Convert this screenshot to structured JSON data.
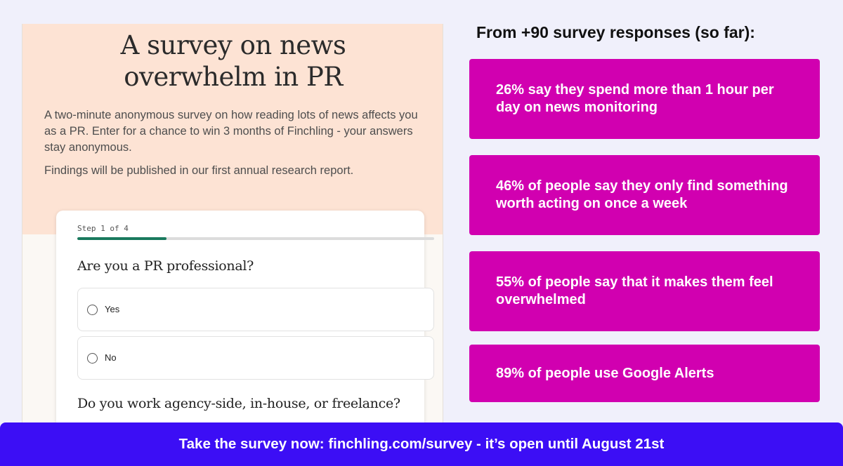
{
  "survey": {
    "title_line1": "A survey on news",
    "title_line2": "overwhelm in PR",
    "description": "A two-minute anonymous survey on how reading lots of news affects you as a PR. Enter for a chance to win 3 months of Finchling - your answers stay anonymous.",
    "findings_note": "Findings will be published in our first annual research report.",
    "form": {
      "step_label": "Step 1 of 4",
      "progress_fraction": 0.25,
      "question1": "Are you a PR professional?",
      "options": [
        {
          "label": "Yes"
        },
        {
          "label": "No"
        }
      ],
      "question2": "Do you work agency-side, in-house, or freelance?"
    }
  },
  "stats": {
    "heading": "From +90 survey responses (so far):",
    "items": [
      {
        "text": "26% say they spend more than 1 hour per day on news monitoring"
      },
      {
        "text": "46% of people say they only find something worth acting on once a week"
      },
      {
        "text": "55% of people say that it makes them feel overwhelmed"
      },
      {
        "text": "89% of people use Google Alerts"
      }
    ]
  },
  "cta": {
    "text": "Take the survey now: finchling.com/survey - it’s open until August 21st"
  },
  "colors": {
    "background": "#f0f0fb",
    "survey_header_bg": "#fde3d4",
    "stat_card": "#d100b0",
    "cta_banner": "#3c0ef5",
    "progress": "#1a7a5e"
  }
}
